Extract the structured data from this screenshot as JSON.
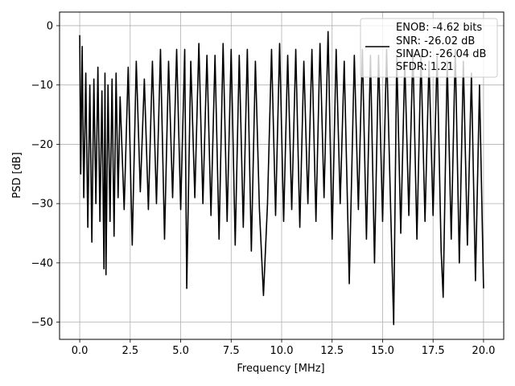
{
  "chart_data": {
    "type": "line",
    "title": "",
    "xlabel": "Frequency [MHz]",
    "ylabel": "PSD [dB]",
    "xlim": [
      -1.0,
      21.0
    ],
    "ylim": [
      -52.9,
      2.3
    ],
    "x_ticks": [
      0.0,
      2.5,
      5.0,
      7.5,
      10.0,
      12.5,
      15.0,
      17.5,
      20.0
    ],
    "x_tick_labels": [
      "0.0",
      "2.5",
      "5.0",
      "7.5",
      "10.0",
      "12.5",
      "15.0",
      "17.5",
      "20.0"
    ],
    "y_ticks": [
      0,
      -10,
      -20,
      -30,
      -40,
      -50
    ],
    "y_tick_labels": [
      "0",
      "−10",
      "−20",
      "−30",
      "−40",
      "−50"
    ],
    "grid": true,
    "legend_position": "top-right",
    "legend_lines": [
      "ENOB: -4.62 bits",
      "SNR: -26.02 dB",
      "SINAD: -26.04 dB",
      "SFDR: 1.21"
    ],
    "series": [
      {
        "color": "#000000",
        "x": [
          0.0,
          0.05,
          0.12,
          0.2,
          0.3,
          0.4,
          0.5,
          0.6,
          0.7,
          0.8,
          0.9,
          1.0,
          1.1,
          1.2,
          1.25,
          1.3,
          1.4,
          1.5,
          1.6,
          1.7,
          1.8,
          1.9,
          2.0,
          2.2,
          2.4,
          2.6,
          2.8,
          3.0,
          3.2,
          3.4,
          3.6,
          3.8,
          4.0,
          4.2,
          4.4,
          4.6,
          4.8,
          5.0,
          5.2,
          5.3,
          5.5,
          5.7,
          5.9,
          6.1,
          6.3,
          6.5,
          6.7,
          6.9,
          7.1,
          7.3,
          7.5,
          7.7,
          7.9,
          8.1,
          8.3,
          8.5,
          8.7,
          8.9,
          9.1,
          9.3,
          9.5,
          9.7,
          9.9,
          10.1,
          10.3,
          10.5,
          10.7,
          10.9,
          11.1,
          11.3,
          11.5,
          11.7,
          11.9,
          12.1,
          12.3,
          12.5,
          12.7,
          12.9,
          13.1,
          13.35,
          13.6,
          13.8,
          14.0,
          14.2,
          14.4,
          14.6,
          14.8,
          15.0,
          15.2,
          15.4,
          15.55,
          15.7,
          15.9,
          16.1,
          16.3,
          16.5,
          16.7,
          16.9,
          17.1,
          17.3,
          17.5,
          17.7,
          17.9,
          18.0,
          18.2,
          18.4,
          18.6,
          18.8,
          19.0,
          19.2,
          19.4,
          19.6,
          19.8,
          20.0
        ],
        "y": [
          -1.6,
          -25.0,
          -3.5,
          -29.0,
          -8.0,
          -34.0,
          -10.0,
          -36.5,
          -9.0,
          -30.0,
          -7.0,
          -33.0,
          -11.0,
          -41.0,
          -8.0,
          -42.0,
          -10.0,
          -33.0,
          -9.0,
          -35.5,
          -8.0,
          -29.0,
          -12.0,
          -31.0,
          -7.0,
          -37.0,
          -6.0,
          -28.0,
          -9.0,
          -31.0,
          -6.0,
          -30.0,
          -4.0,
          -36.0,
          -6.0,
          -29.0,
          -4.0,
          -31.0,
          -4.0,
          -44.3,
          -6.0,
          -29.0,
          -3.0,
          -30.0,
          -5.0,
          -32.0,
          -5.0,
          -36.0,
          -3.0,
          -33.0,
          -4.0,
          -37.0,
          -5.0,
          -34.0,
          -4.0,
          -38.0,
          -6.0,
          -31.0,
          -45.5,
          -30.0,
          -4.0,
          -32.0,
          -3.0,
          -33.0,
          -5.0,
          -31.0,
          -4.0,
          -34.0,
          -6.0,
          -30.0,
          -4.0,
          -33.0,
          -3.0,
          -29.0,
          -1.0,
          -36.0,
          -4.0,
          -30.0,
          -6.0,
          -43.5,
          -5.0,
          -31.0,
          -4.0,
          -36.0,
          -5.0,
          -40.0,
          -5.0,
          -33.0,
          -4.0,
          -31.0,
          -50.4,
          -5.0,
          -35.0,
          -6.0,
          -32.0,
          -4.0,
          -36.0,
          -5.0,
          -33.0,
          -6.0,
          -32.0,
          -5.0,
          -38.0,
          -45.8,
          -6.0,
          -36.0,
          -4.0,
          -40.0,
          -6.0,
          -37.0,
          -8.0,
          -43.0,
          -10.0,
          -44.3
        ]
      }
    ]
  }
}
